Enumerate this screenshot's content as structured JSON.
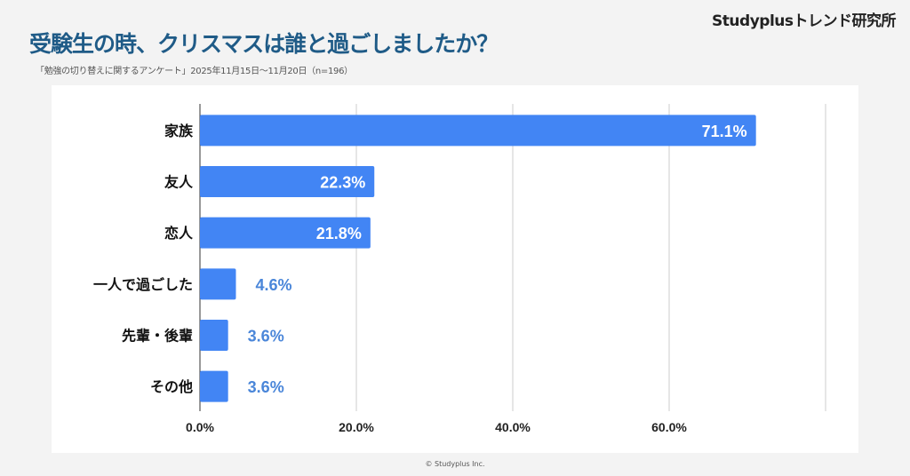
{
  "header": {
    "brand": "Studyplusトレンド研究所",
    "title": "受験生の時、クリスマスは誰と過ごしましたか？",
    "subtitle": "「勉強の切り替えに関するアンケート」2025年11月15日〜11月20日（n=196）"
  },
  "footer": {
    "copyright": "© Studyplus Inc."
  },
  "colors": {
    "bar": "#4285f4",
    "label_outside": "#4a86d9",
    "label_inside": "#ffffff",
    "title": "#1f5b87"
  },
  "chart_data": {
    "type": "bar",
    "orientation": "horizontal",
    "categories": [
      "家族",
      "友人",
      "恋人",
      "一人で過ごした",
      "先輩・後輩",
      "その他"
    ],
    "values": [
      71.1,
      22.3,
      21.8,
      4.6,
      3.6,
      3.6
    ],
    "data_labels": [
      "71.1%",
      "22.3%",
      "21.8%",
      "4.6%",
      "3.6%",
      "3.6%"
    ],
    "xlim": [
      0,
      80
    ],
    "x_ticks": [
      0,
      20,
      40,
      60,
      80
    ],
    "x_tick_labels": [
      "0.0%",
      "20.0%",
      "40.0%",
      "60.0%",
      ""
    ],
    "grid": true,
    "title": "",
    "xlabel": "",
    "ylabel": ""
  }
}
